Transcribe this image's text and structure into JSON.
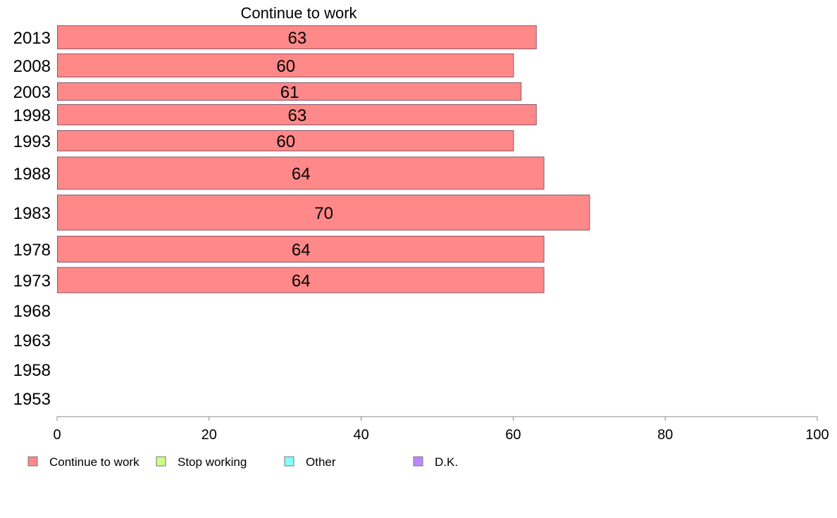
{
  "chart_data": {
    "type": "bar",
    "orientation": "horizontal",
    "title": "Continue to work",
    "categories": [
      "2013",
      "2008",
      "2003",
      "1998",
      "1993",
      "1988",
      "1983",
      "1978",
      "1973",
      "1968",
      "1963",
      "1958",
      "1953"
    ],
    "series": [
      {
        "name": "Continue to work",
        "color": "#ff8888",
        "values": [
          63,
          60,
          61,
          63,
          60,
          64,
          70,
          64,
          64,
          null,
          null,
          null,
          null
        ],
        "data_labels": [
          "63",
          "60",
          "61",
          "63",
          "60",
          "64",
          "70",
          "64",
          "64",
          null,
          null,
          null,
          null
        ]
      }
    ],
    "xlim": [
      0,
      100
    ],
    "xticks": [
      "0",
      "20",
      "40",
      "60",
      "80",
      "100"
    ],
    "grid": false,
    "legend": {
      "position": "bottom",
      "items": [
        {
          "label": "Continue to work",
          "color": "#ff8888"
        },
        {
          "label": "Stop working",
          "color": "#ccff88"
        },
        {
          "label": "Other",
          "color": "#88ffff"
        },
        {
          "label": "D.K.",
          "color": "#bb88ff"
        }
      ]
    }
  }
}
